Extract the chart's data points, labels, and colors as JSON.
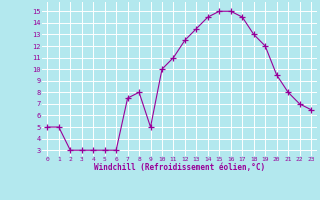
{
  "x": [
    0,
    1,
    2,
    3,
    4,
    5,
    6,
    7,
    8,
    9,
    10,
    11,
    12,
    13,
    14,
    15,
    16,
    17,
    18,
    19,
    20,
    21,
    22,
    23
  ],
  "y": [
    5,
    5,
    3,
    3,
    3,
    3,
    3,
    7.5,
    8,
    5,
    10,
    11,
    12.5,
    13.5,
    14.5,
    15,
    15,
    14.5,
    13,
    12,
    9.5,
    8,
    7,
    6.5
  ],
  "line_color": "#990099",
  "marker": "+",
  "marker_size": 4,
  "bg_color": "#b3e8ee",
  "grid_color": "#ffffff",
  "xlabel": "Windchill (Refroidissement éolien,°C)",
  "xlabel_color": "#990099",
  "tick_color": "#990099",
  "ylim": [
    2.5,
    15.8
  ],
  "xlim": [
    -0.5,
    23.5
  ],
  "yticks": [
    3,
    4,
    5,
    6,
    7,
    8,
    9,
    10,
    11,
    12,
    13,
    14,
    15
  ],
  "xticks": [
    0,
    1,
    2,
    3,
    4,
    5,
    6,
    7,
    8,
    9,
    10,
    11,
    12,
    13,
    14,
    15,
    16,
    17,
    18,
    19,
    20,
    21,
    22,
    23
  ]
}
